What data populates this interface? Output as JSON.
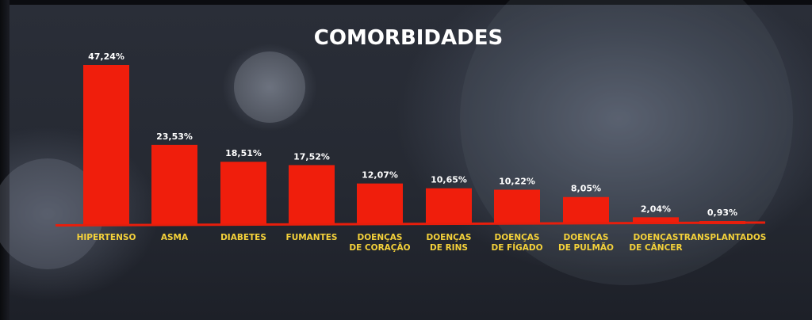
{
  "chart_data": {
    "type": "bar",
    "title": "COMORBIDADES",
    "categories": [
      [
        "HIPERTENSO"
      ],
      [
        "ASMA"
      ],
      [
        "DIABETES"
      ],
      [
        "FUMANTES"
      ],
      [
        "DOENÇAS",
        "DE CORAÇÃO"
      ],
      [
        "DOENÇAS",
        "DE RINS"
      ],
      [
        "DOENÇAS",
        "DE FÍGADO"
      ],
      [
        "DOENÇAS",
        "DE PULMÃO"
      ],
      [
        "DOENÇAS",
        "DE CÂNCER"
      ],
      [
        "TRANSPLANTADOS"
      ]
    ],
    "values": [
      47.24,
      23.53,
      18.51,
      17.52,
      12.07,
      10.65,
      10.22,
      8.05,
      2.04,
      0.93
    ],
    "value_labels": [
      "47,24%",
      "23,53%",
      "18,51%",
      "17,52%",
      "12,07%",
      "10,65%",
      "10,22%",
      "8,05%",
      "2,04%",
      "0,93%"
    ],
    "ylim": [
      0,
      50
    ],
    "grid": false,
    "legend": "none"
  },
  "colors": {
    "bar": "#f01e0c",
    "baseline": "#e81e0c",
    "category_text": "#f5d23a",
    "value_text": "#ffffff"
  }
}
